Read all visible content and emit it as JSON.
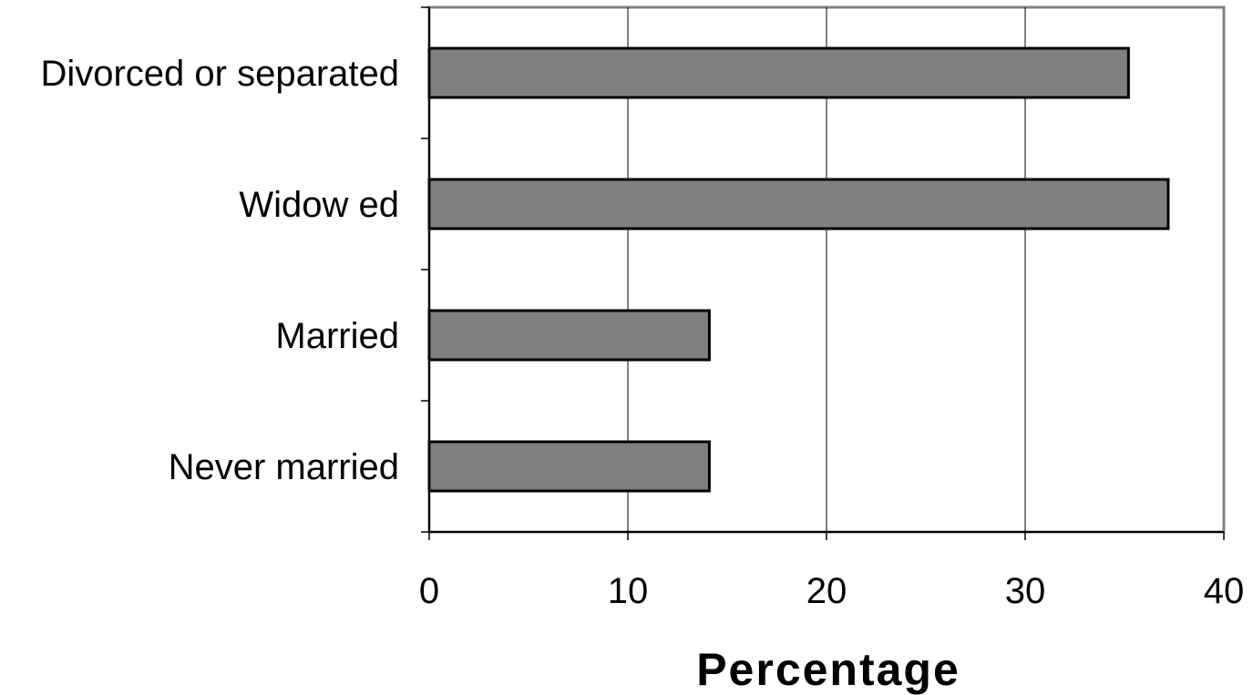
{
  "chart_data": {
    "type": "bar",
    "orientation": "horizontal",
    "categories": [
      "Divorced or separated",
      "Widow ed",
      "Married",
      "Never married"
    ],
    "values": [
      35.2,
      37.2,
      14.1,
      14.1
    ],
    "title": "",
    "xlabel": "Percentage",
    "ylabel": "",
    "xlim": [
      0,
      40
    ],
    "xticks": [
      0,
      10,
      20,
      30,
      40
    ],
    "xtick_labels": [
      "0",
      "10",
      "20",
      "30",
      "40"
    ],
    "grid": "vertical major gridlines",
    "bar_color": "#808080",
    "bar_edge_color": "#000000",
    "plot_border_color": "#808080",
    "legend": "none"
  }
}
